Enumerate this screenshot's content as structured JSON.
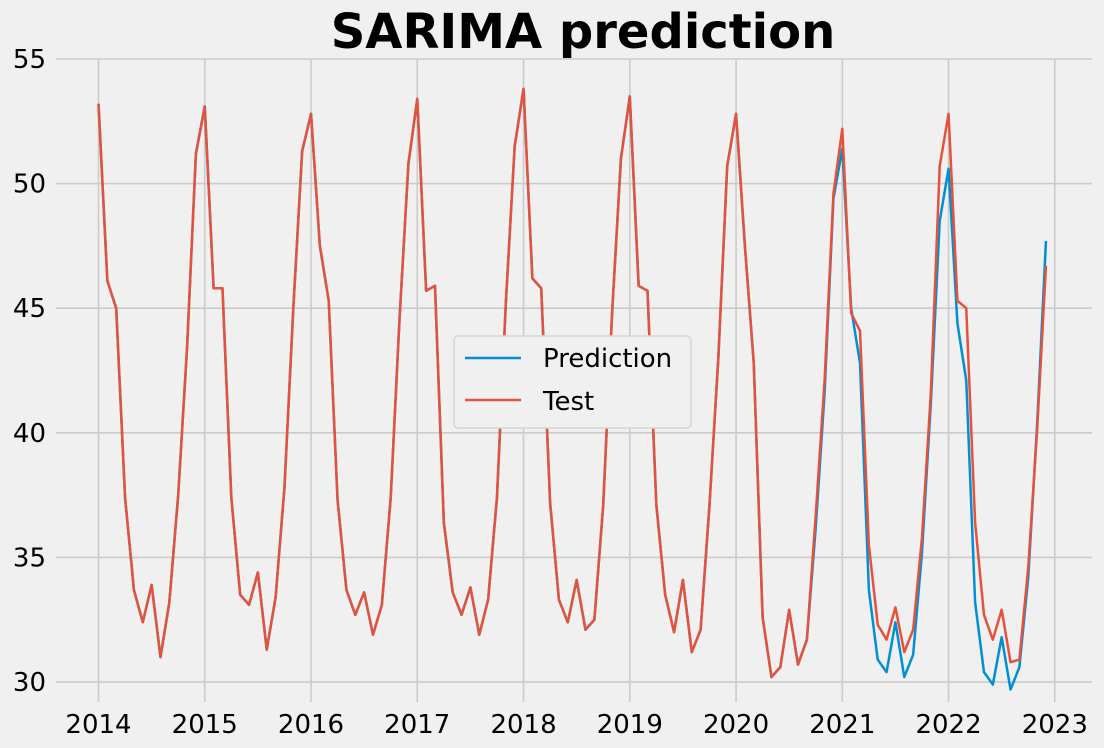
{
  "chart_data": {
    "type": "line",
    "title": "SARIMA prediction",
    "xlabel": "",
    "ylabel": "",
    "xlim": [
      2013.6,
      2023.35
    ],
    "ylim": [
      29.2,
      55
    ],
    "x_ticks": [
      2014,
      2015,
      2016,
      2017,
      2018,
      2019,
      2020,
      2021,
      2022,
      2023
    ],
    "x_tick_labels": [
      "2014",
      "2015",
      "2016",
      "2017",
      "2018",
      "2019",
      "2020",
      "2021",
      "2022",
      "2023"
    ],
    "y_ticks": [
      30,
      35,
      40,
      45,
      50,
      55
    ],
    "y_tick_labels": [
      "30",
      "35",
      "40",
      "45",
      "50",
      "55"
    ],
    "grid": true,
    "legend_position": "center",
    "x_start": "2014-01",
    "x_step": "1 month",
    "series": [
      {
        "name": "Prediction",
        "color": "#008fd5",
        "values": [
          53.2,
          46.1,
          45.0,
          37.4,
          33.7,
          32.4,
          33.9,
          31.0,
          33.2,
          37.5,
          43.4,
          51.2,
          53.1,
          45.8,
          45.8,
          37.4,
          33.5,
          33.1,
          34.4,
          31.3,
          33.4,
          37.8,
          45.0,
          51.3,
          52.8,
          47.5,
          45.3,
          37.3,
          33.7,
          32.7,
          33.6,
          31.9,
          33.1,
          37.4,
          44.6,
          50.8,
          53.4,
          45.7,
          45.9,
          36.4,
          33.6,
          32.7,
          33.8,
          31.9,
          33.3,
          37.4,
          45.2,
          51.5,
          53.8,
          46.2,
          45.8,
          37.2,
          33.3,
          32.4,
          34.1,
          32.1,
          32.5,
          37.1,
          44.8,
          51.0,
          53.5,
          45.9,
          45.7,
          37.1,
          33.5,
          32.0,
          34.1,
          31.2,
          32.1,
          37.1,
          43.0,
          50.7,
          52.8,
          47.5,
          42.8,
          32.6,
          30.2,
          30.6,
          32.9,
          30.7,
          31.7,
          36.2,
          41.6,
          49.4,
          51.4,
          45.0,
          42.8,
          33.7,
          30.9,
          30.4,
          32.4,
          30.2,
          31.1,
          35.2,
          41.2,
          48.5,
          50.6,
          44.4,
          42.1,
          33.2,
          30.4,
          29.9,
          31.8,
          29.7,
          30.6,
          34.2,
          40.3,
          47.7
        ]
      },
      {
        "name": "Test",
        "color": "#e5523c",
        "values": [
          53.2,
          46.1,
          45.0,
          37.4,
          33.7,
          32.4,
          33.9,
          31.0,
          33.2,
          37.5,
          43.4,
          51.2,
          53.1,
          45.8,
          45.8,
          37.4,
          33.5,
          33.1,
          34.4,
          31.3,
          33.4,
          37.8,
          45.0,
          51.3,
          52.8,
          47.5,
          45.3,
          37.3,
          33.7,
          32.7,
          33.6,
          31.9,
          33.1,
          37.4,
          44.6,
          50.8,
          53.4,
          45.7,
          45.9,
          36.4,
          33.6,
          32.7,
          33.8,
          31.9,
          33.3,
          37.4,
          45.2,
          51.5,
          53.8,
          46.2,
          45.8,
          37.2,
          33.3,
          32.4,
          34.1,
          32.1,
          32.5,
          37.1,
          44.8,
          51.0,
          53.5,
          45.9,
          45.7,
          37.1,
          33.5,
          32.0,
          34.1,
          31.2,
          32.1,
          37.1,
          43.0,
          50.7,
          52.8,
          47.5,
          42.8,
          32.6,
          30.2,
          30.6,
          32.9,
          30.7,
          31.7,
          36.7,
          42.1,
          49.6,
          52.2,
          44.8,
          44.1,
          35.5,
          32.3,
          31.7,
          33.0,
          31.2,
          32.1,
          35.8,
          41.6,
          50.7,
          52.8,
          45.3,
          45.0,
          36.4,
          32.7,
          31.7,
          32.9,
          30.8,
          30.9,
          34.6,
          40.1,
          46.7
        ]
      }
    ]
  }
}
